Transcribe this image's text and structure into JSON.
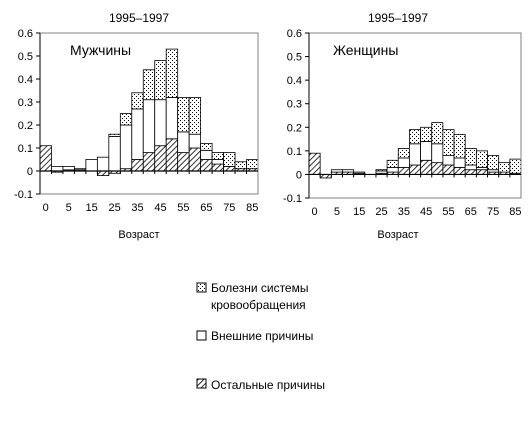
{
  "chart_data": [
    {
      "type": "bar",
      "stacked": true,
      "title": "1995–1997",
      "panel_label": "Мужчины",
      "xlabel": "Возраст",
      "ylabel": "",
      "ylim": [
        -0.1,
        0.6
      ],
      "yticks": [
        "-0.1",
        "0",
        "0.1",
        "0.2",
        "0.3",
        "0.4",
        "0.5",
        "0.6"
      ],
      "categories": [
        "0",
        "",
        "5",
        "",
        "15",
        "",
        "25",
        "",
        "35",
        "",
        "45",
        "",
        "55",
        "",
        "65",
        "",
        "75",
        "",
        "85"
      ],
      "xtick_labels": [
        "0",
        "5",
        "15",
        "25",
        "35",
        "45",
        "55",
        "65",
        "75",
        "85"
      ],
      "series": [
        {
          "name": "Остальные причины",
          "pattern": "diagonal-hatch",
          "values": [
            0.11,
            -0.005,
            0.005,
            0.005,
            0.0,
            -0.02,
            -0.01,
            0.01,
            0.05,
            0.08,
            0.11,
            0.14,
            0.08,
            0.1,
            0.05,
            0.03,
            0.02,
            0.01,
            0.01
          ]
        },
        {
          "name": "Внешние причины",
          "pattern": "white",
          "values": [
            0.0,
            0.02,
            0.015,
            0.005,
            0.05,
            0.06,
            0.15,
            0.19,
            0.22,
            0.23,
            0.2,
            0.18,
            0.09,
            0.06,
            0.04,
            0.02,
            0.0,
            0.0,
            0.0
          ]
        },
        {
          "name": "Болезни системы кровообращения",
          "pattern": "dotted",
          "values": [
            0.0,
            0.0,
            0.0,
            0.0,
            0.0,
            0.0,
            0.01,
            0.05,
            0.07,
            0.13,
            0.17,
            0.21,
            0.15,
            0.16,
            0.03,
            0.03,
            0.06,
            0.03,
            0.04
          ]
        }
      ]
    },
    {
      "type": "bar",
      "stacked": true,
      "title": "1995–1997",
      "panel_label": "Женщины",
      "xlabel": "Возраст",
      "ylabel": "",
      "ylim": [
        -0.1,
        0.6
      ],
      "yticks": [
        "-0.1",
        "0",
        "0.1",
        "0.2",
        "0.3",
        "0.4",
        "0.5",
        "0.6"
      ],
      "categories": [
        "0",
        "",
        "5",
        "",
        "15",
        "",
        "25",
        "",
        "35",
        "",
        "45",
        "",
        "55",
        "",
        "65",
        "",
        "75",
        "",
        "85"
      ],
      "xtick_labels": [
        "0",
        "5",
        "15",
        "25",
        "35",
        "45",
        "55",
        "65",
        "75",
        "85"
      ],
      "series": [
        {
          "name": "Остальные причины",
          "pattern": "diagonal-hatch",
          "values": [
            0.09,
            -0.015,
            0.01,
            0.01,
            0.005,
            0.0,
            0.005,
            0.01,
            0.03,
            0.04,
            0.06,
            0.05,
            0.04,
            0.03,
            0.02,
            0.02,
            0.01,
            0.01,
            0.005
          ]
        },
        {
          "name": "Внешние причины",
          "pattern": "white",
          "values": [
            0.0,
            0.0,
            0.01,
            0.01,
            0.005,
            0.0,
            0.01,
            0.02,
            0.04,
            0.09,
            0.08,
            0.08,
            0.04,
            0.04,
            0.02,
            0.01,
            0.01,
            0.0,
            0.0
          ]
        },
        {
          "name": "Болезни системы кровообращения",
          "pattern": "dotted",
          "values": [
            0.0,
            0.0,
            0.0,
            0.0,
            0.0,
            0.0,
            0.005,
            0.03,
            0.04,
            0.06,
            0.06,
            0.09,
            0.11,
            0.1,
            0.07,
            0.07,
            0.06,
            0.04,
            0.06
          ]
        }
      ]
    }
  ],
  "legend": {
    "items": [
      {
        "pattern": "dotted",
        "label_line1": "Болезни системы",
        "label_line2": "кровообращения"
      },
      {
        "pattern": "white",
        "label_line1": "Внешние причины",
        "label_line2": ""
      },
      {
        "pattern": "diagonal-hatch",
        "label_line1": "Остальные причины",
        "label_line2": ""
      }
    ]
  }
}
